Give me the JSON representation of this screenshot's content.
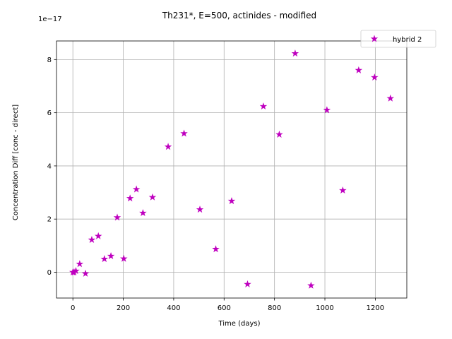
{
  "chart_data": {
    "type": "scatter",
    "title": "Th231*, E=500, actinides - modified",
    "xlabel": "Time (days)",
    "ylabel": "Concentration Diff [conc - direct]",
    "y_offset_label": "1e−17",
    "y_multiplier": 1e-17,
    "xlim": [
      -65,
      1325
    ],
    "ylim": [
      -0.97,
      8.7
    ],
    "xticks": [
      0,
      200,
      400,
      600,
      800,
      1000,
      1200
    ],
    "yticks": [
      0,
      2,
      4,
      6,
      8
    ],
    "grid": true,
    "legend_position": "top-right",
    "series": [
      {
        "name": "hybrid 2",
        "color": "#bf00bf",
        "marker": "star",
        "x": [
          0,
          5,
          12,
          27,
          50,
          75,
          101,
          125,
          151,
          176,
          202,
          227,
          252,
          278,
          316,
          378,
          441,
          504,
          567,
          630,
          693,
          756,
          819,
          882,
          945,
          1008,
          1071,
          1134,
          1197,
          1260
        ],
        "y": [
          0.0,
          0.0,
          0.05,
          0.31,
          -0.05,
          1.22,
          1.36,
          0.5,
          0.61,
          2.06,
          0.51,
          2.78,
          3.12,
          2.23,
          2.82,
          4.72,
          5.22,
          2.36,
          0.87,
          2.68,
          -0.45,
          6.24,
          5.18,
          8.23,
          -0.5,
          6.1,
          3.08,
          7.6,
          7.33,
          6.54
        ]
      }
    ]
  }
}
